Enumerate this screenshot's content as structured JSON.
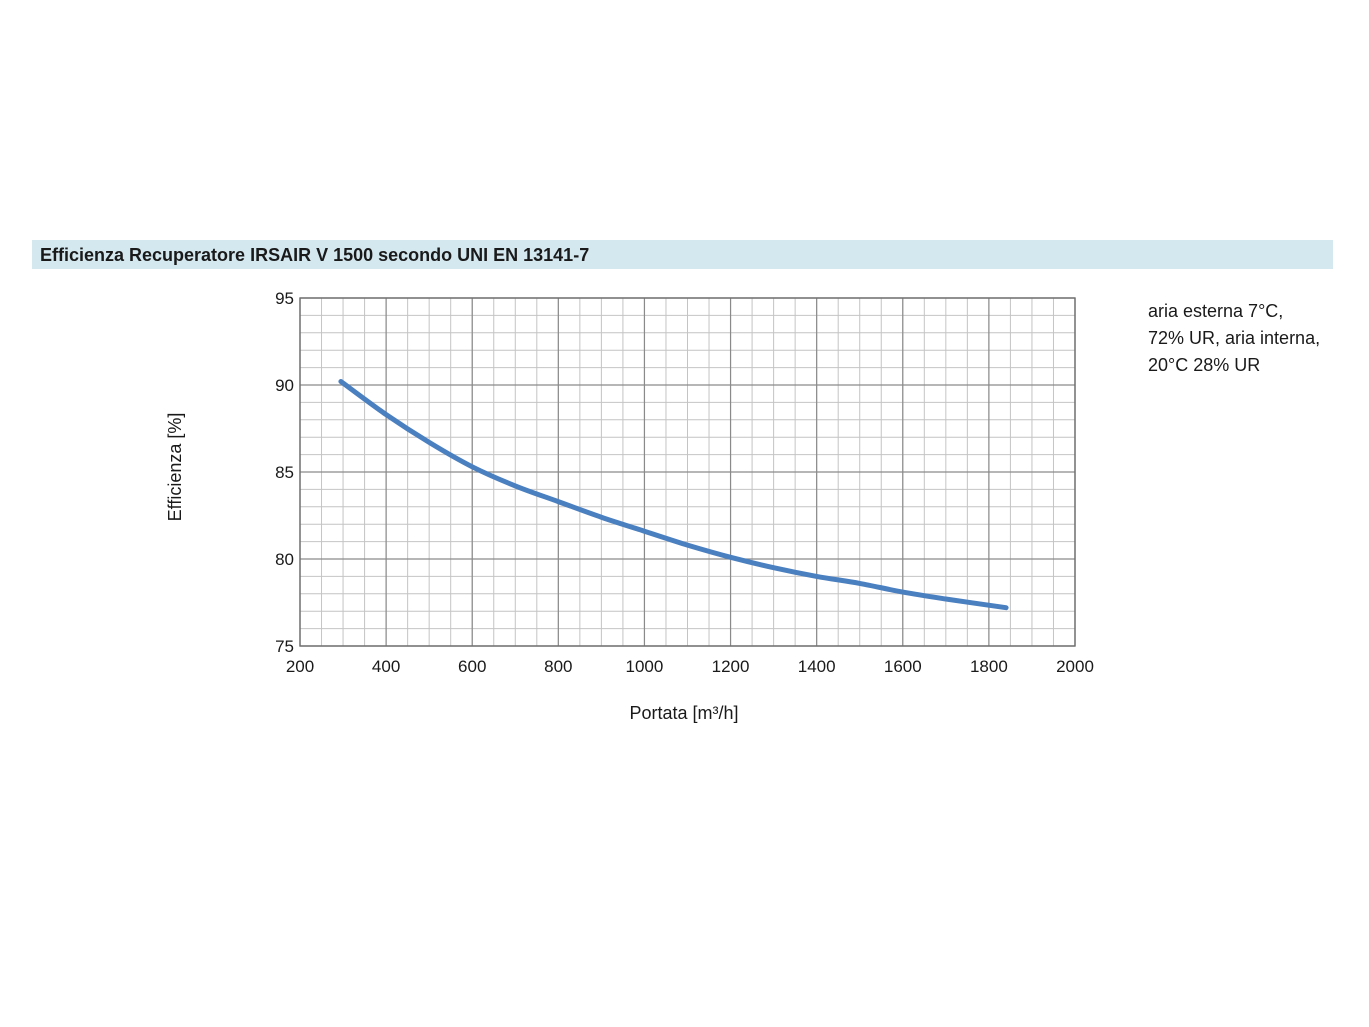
{
  "chart_data": {
    "type": "line",
    "title": "Efficienza Recuperatore IRSAIR V 1500 secondo UNI EN 13141-7",
    "xlabel": "Portata [m³/h]",
    "ylabel": "Efficienza [%]",
    "xlim": [
      200,
      2000
    ],
    "ylim": [
      75,
      95
    ],
    "x_ticks": [
      200,
      400,
      600,
      800,
      1000,
      1200,
      1400,
      1600,
      1800,
      2000
    ],
    "y_ticks": [
      75,
      80,
      85,
      90,
      95
    ],
    "x_minor_step": 50,
    "y_minor_step": 1,
    "grid": true,
    "series": [
      {
        "color": "#4a7fc0",
        "x": [
          295,
          400,
          500,
          600,
          700,
          800,
          900,
          1000,
          1100,
          1200,
          1300,
          1400,
          1500,
          1600,
          1700,
          1840
        ],
        "y": [
          90.2,
          88.3,
          86.7,
          85.3,
          84.2,
          83.3,
          82.4,
          81.6,
          80.8,
          80.1,
          79.5,
          79.0,
          78.6,
          78.1,
          77.7,
          77.2
        ]
      }
    ],
    "annotations": [
      "aria esterna 7°C,",
      "72% UR, aria interna,",
      "20°C 28% UR"
    ]
  }
}
